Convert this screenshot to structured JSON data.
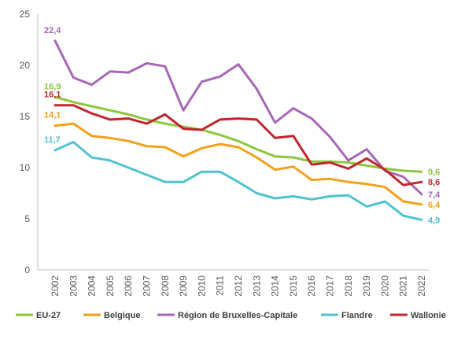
{
  "chart_data": {
    "type": "line",
    "title": "",
    "xlabel": "",
    "ylabel": "",
    "ylim": [
      0,
      25
    ],
    "yticks": [
      0,
      5,
      10,
      15,
      20,
      25
    ],
    "grid": false,
    "legend_position": "bottom",
    "x": [
      "2002",
      "2003",
      "2004",
      "2005",
      "2006",
      "2007",
      "2008",
      "2009",
      "2010",
      "2011",
      "2012",
      "2013",
      "2014",
      "2015",
      "2016",
      "2017",
      "2018",
      "2019",
      "2020",
      "2021",
      "2022"
    ],
    "series": [
      {
        "name": "EU-27",
        "color": "#8dc63f",
        "values": [
          16.9,
          16.4,
          16.0,
          15.6,
          15.2,
          14.7,
          14.3,
          14.0,
          13.7,
          13.2,
          12.6,
          11.8,
          11.1,
          11.0,
          10.6,
          10.6,
          10.5,
          10.2,
          9.9,
          9.7,
          9.6
        ],
        "labels": {
          "start": "16,9",
          "end": "9,6"
        }
      },
      {
        "name": "Belgique",
        "color": "#f5a01a",
        "values": [
          14.1,
          14.3,
          13.1,
          12.9,
          12.6,
          12.1,
          12.0,
          11.1,
          11.9,
          12.3,
          12.0,
          11.0,
          9.8,
          10.1,
          8.8,
          8.9,
          8.6,
          8.4,
          8.1,
          6.7,
          6.4
        ],
        "labels": {
          "start": "14,1",
          "end": "6,4"
        }
      },
      {
        "name": "Région de Bruxelles-Capitale",
        "color": "#a867b6",
        "values": [
          22.4,
          18.8,
          18.1,
          19.4,
          19.3,
          20.2,
          19.9,
          15.6,
          18.4,
          18.9,
          20.1,
          17.7,
          14.4,
          15.8,
          14.8,
          13.0,
          10.7,
          11.8,
          9.7,
          9.1,
          7.4
        ],
        "labels": {
          "start": "22,4",
          "end": "7,4"
        }
      },
      {
        "name": "Flandre",
        "color": "#4fc3cf",
        "values": [
          11.7,
          12.5,
          11.0,
          10.7,
          10.0,
          9.3,
          8.6,
          8.6,
          9.6,
          9.6,
          8.6,
          7.5,
          7.0,
          7.2,
          6.9,
          7.2,
          7.3,
          6.2,
          6.7,
          5.3,
          4.9
        ],
        "labels": {
          "start": "11,7",
          "end": "4,9"
        }
      },
      {
        "name": "Wallonie",
        "color": "#c0272d",
        "values": [
          16.1,
          16.1,
          15.3,
          14.7,
          14.8,
          14.3,
          15.2,
          13.8,
          13.7,
          14.7,
          14.8,
          14.7,
          12.9,
          13.1,
          10.3,
          10.5,
          9.9,
          10.9,
          9.8,
          8.3,
          8.6
        ],
        "labels": {
          "start": "16,1",
          "end": "8,6"
        }
      }
    ]
  }
}
